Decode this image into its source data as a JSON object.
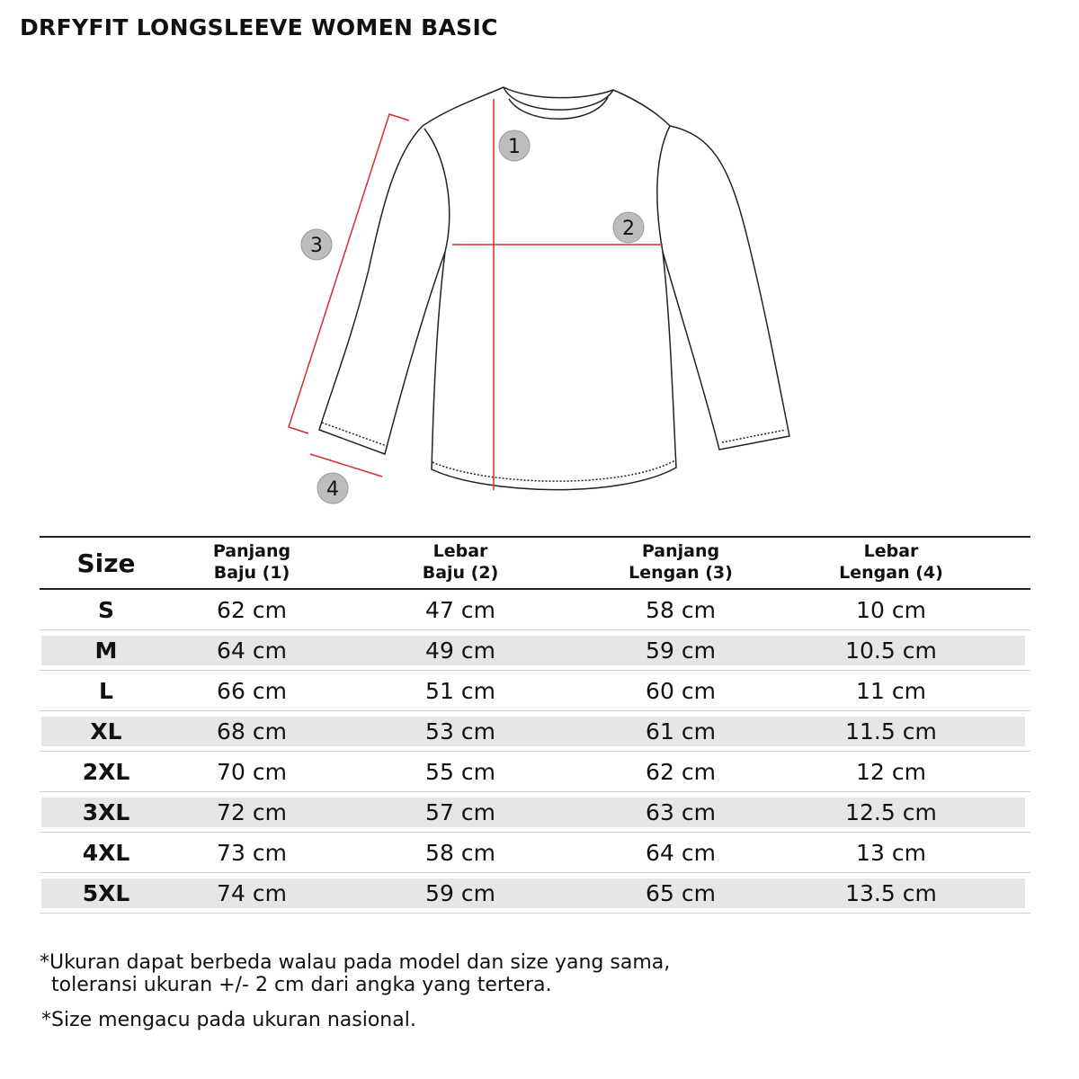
{
  "title": "DRFYFIT LONGSLEEVE WOMEN BASIC",
  "diagram": {
    "markers": [
      "1",
      "2",
      "3",
      "4"
    ],
    "arrow_color": "#d62b2b",
    "marker_color": "#bdbdbd"
  },
  "table": {
    "headers": [
      {
        "line1": "Size",
        "line2": ""
      },
      {
        "line1": "Panjang",
        "line2": "Baju (1)"
      },
      {
        "line1": "Lebar",
        "line2": "Baju (2)"
      },
      {
        "line1": "Panjang",
        "line2": "Lengan (3)"
      },
      {
        "line1": "Lebar",
        "line2": "Lengan (4)"
      }
    ],
    "unit": "cm",
    "rows": [
      {
        "size": "S",
        "panjang_baju": "62",
        "lebar_baju": "47",
        "panjang_lengan": "58",
        "lebar_lengan": "10"
      },
      {
        "size": "M",
        "panjang_baju": "64",
        "lebar_baju": "49",
        "panjang_lengan": "59",
        "lebar_lengan": "10.5"
      },
      {
        "size": "L",
        "panjang_baju": "66",
        "lebar_baju": "51",
        "panjang_lengan": "60",
        "lebar_lengan": "11"
      },
      {
        "size": "XL",
        "panjang_baju": "68",
        "lebar_baju": "53",
        "panjang_lengan": "61",
        "lebar_lengan": "11.5"
      },
      {
        "size": "2XL",
        "panjang_baju": "70",
        "lebar_baju": "55",
        "panjang_lengan": "62",
        "lebar_lengan": "12"
      },
      {
        "size": "3XL",
        "panjang_baju": "72",
        "lebar_baju": "57",
        "panjang_lengan": "63",
        "lebar_lengan": "12.5"
      },
      {
        "size": "4XL",
        "panjang_baju": "73",
        "lebar_baju": "58",
        "panjang_lengan": "64",
        "lebar_lengan": "13"
      },
      {
        "size": "5XL",
        "panjang_baju": "74",
        "lebar_baju": "59",
        "panjang_lengan": "65",
        "lebar_lengan": "13.5"
      }
    ]
  },
  "notes": {
    "tolerance_line1": "*Ukuran dapat berbeda walau pada model dan size yang sama,",
    "tolerance_line2": "toleransi ukuran +/- 2 cm dari angka yang tertera.",
    "size_reference": "*Size mengacu pada ukuran nasional."
  }
}
